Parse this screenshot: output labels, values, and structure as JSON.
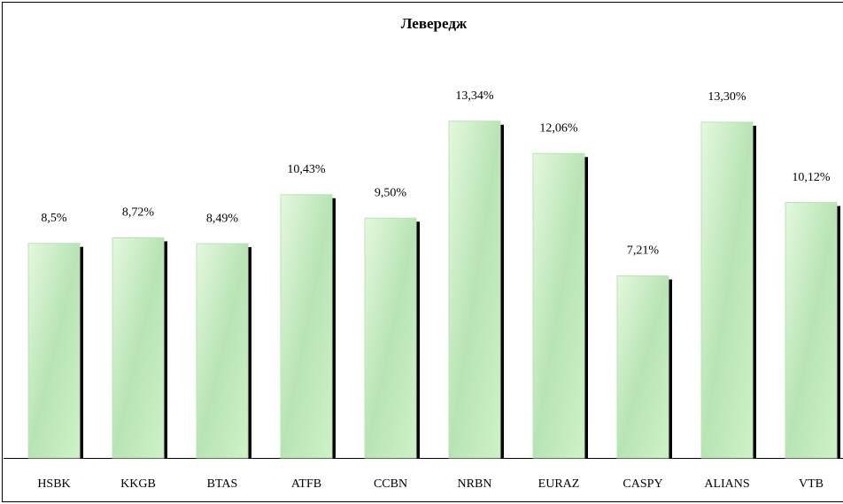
{
  "chart_data": {
    "type": "bar",
    "title": "Левередж",
    "categories": [
      "HSBK",
      "KKGB",
      "BTAS",
      "ATFB",
      "CCBN",
      "NRBN",
      "EURAZ",
      "CASPY",
      "ALIANS",
      "VTB"
    ],
    "values": [
      8.5,
      8.72,
      8.49,
      10.43,
      9.5,
      13.34,
      12.06,
      7.21,
      13.3,
      10.12
    ],
    "value_labels": [
      "8,5%",
      "8,72%",
      "8,49%",
      "10,43%",
      "9,50%",
      "13,34%",
      "12,06%",
      "7,21%",
      "13,30%",
      "10,12%"
    ],
    "color": "#b8e4b4"
  }
}
